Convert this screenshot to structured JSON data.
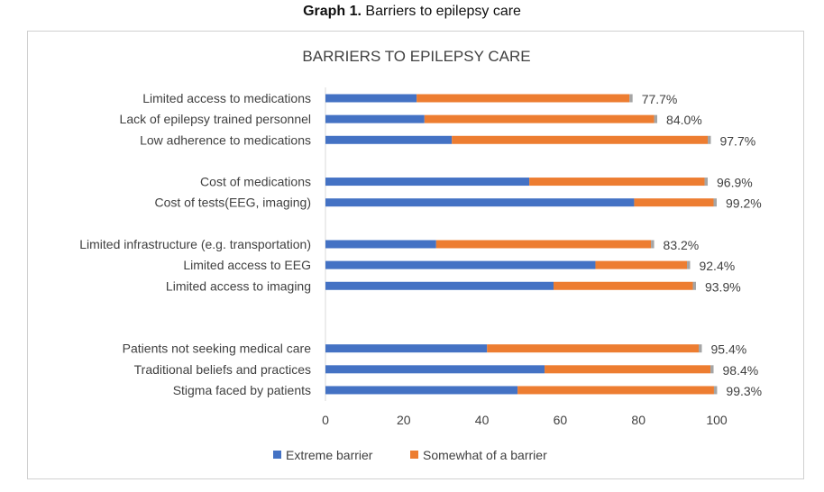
{
  "caption": {
    "label": "Graph 1.",
    "text": "Barriers to epilepsy care"
  },
  "chart_data": {
    "type": "bar",
    "orientation": "horizontal",
    "stacked": true,
    "title": "BARRIERS TO EPILEPSY CARE",
    "categories": [
      "Limited access to medications",
      "Lack of epilepsy trained personnel",
      "Low adherence to medications",
      "",
      "Cost of medications",
      "Cost of tests(EEG, imaging)",
      "",
      "Limited infrastructure (e.g. transportation)",
      "Limited access to EEG",
      "Limited access to imaging",
      "",
      "",
      "Patients not seeking medical care",
      "Traditional beliefs and practices",
      "Stigma faced by patients"
    ],
    "series": [
      {
        "name": "Extreme barrier",
        "color": "#4472c4",
        "values": [
          23.3,
          25.3,
          32.3,
          null,
          52.1,
          78.9,
          null,
          28.3,
          69.0,
          58.3,
          null,
          null,
          41.3,
          56.0,
          49.1
        ]
      },
      {
        "name": "Somewhat of a barrier",
        "color": "#ed7d31",
        "values": [
          54.4,
          58.7,
          65.4,
          null,
          44.8,
          20.3,
          null,
          54.9,
          23.4,
          35.6,
          null,
          null,
          54.1,
          42.4,
          50.2
        ]
      },
      {
        "color": "#a5a5a5",
        "values": [
          0.8,
          0.8,
          0.8,
          null,
          0.8,
          0.8,
          null,
          0.8,
          0.8,
          0.8,
          null,
          null,
          0.8,
          0.8,
          0.8
        ]
      }
    ],
    "data_labels": [
      "77.7%",
      "84.0%",
      "97.7%",
      "",
      "96.9%",
      "99.2%",
      "",
      "83.2%",
      "92.4%",
      "93.9%",
      "",
      "",
      "95.4%",
      "98.4%",
      "99.3%"
    ],
    "xlim": [
      0,
      100
    ],
    "xticks": [
      "0",
      "20",
      "40",
      "60",
      "80",
      "100"
    ],
    "grid": false,
    "legend": "bottom"
  }
}
